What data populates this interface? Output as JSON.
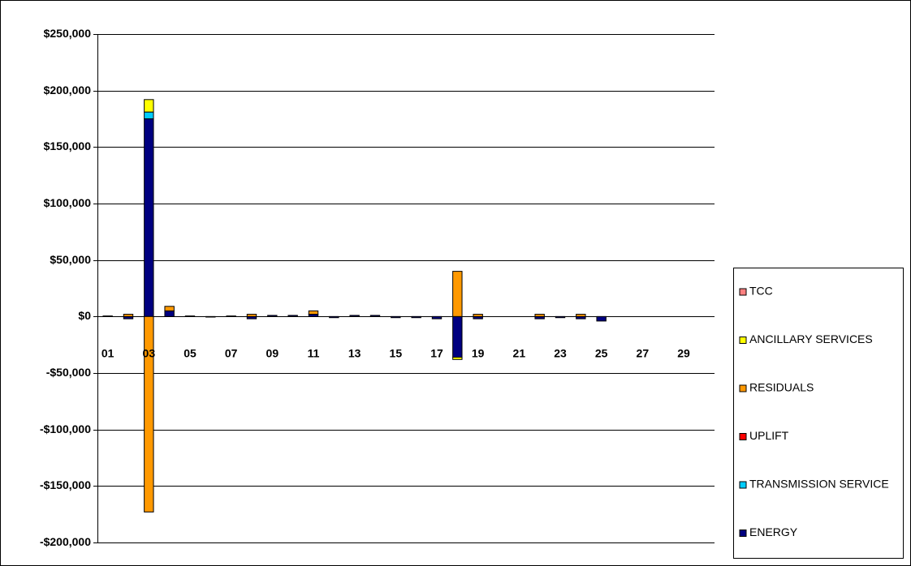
{
  "chart_data": {
    "type": "stacked-bar",
    "categories": [
      "01",
      null,
      "03",
      null,
      "05",
      null,
      "07",
      null,
      "09",
      null,
      "11",
      null,
      "13",
      null,
      "15",
      null,
      "17",
      null,
      "19",
      null,
      "21",
      null,
      "23",
      null,
      "25",
      null,
      "27",
      null,
      "29",
      null
    ],
    "series": [
      {
        "name": "ENERGY",
        "color": "#000080",
        "values": [
          500,
          -2000,
          175000,
          5000,
          500,
          -500,
          500,
          -2000,
          1000,
          1000,
          2000,
          -1000,
          1000,
          1000,
          -1000,
          -1000,
          -2000,
          -36000,
          -2000,
          0,
          0,
          -2000,
          -1000,
          -2000,
          -4000,
          0,
          0,
          0,
          0,
          0
        ]
      },
      {
        "name": "TRANSMISSION SERVICE",
        "color": "#00ccff",
        "values": [
          0,
          0,
          6000,
          0,
          0,
          0,
          0,
          0,
          0,
          0,
          0,
          0,
          0,
          0,
          0,
          0,
          0,
          0,
          0,
          0,
          0,
          0,
          0,
          0,
          0,
          0,
          0,
          0,
          0,
          0
        ]
      },
      {
        "name": "UPLIFT",
        "color": "#ff0000",
        "values": [
          0,
          0,
          0,
          0,
          0,
          0,
          0,
          0,
          0,
          0,
          0,
          0,
          0,
          0,
          0,
          0,
          0,
          0,
          0,
          0,
          0,
          0,
          0,
          0,
          0,
          0,
          0,
          0,
          0,
          0
        ]
      },
      {
        "name": "RESIDUALS",
        "color": "#ff9900",
        "values": [
          0,
          2000,
          -173000,
          4000,
          0,
          0,
          0,
          2000,
          0,
          0,
          3000,
          0,
          0,
          0,
          0,
          0,
          0,
          40000,
          2000,
          0,
          0,
          2000,
          0,
          2000,
          0,
          0,
          0,
          0,
          0,
          0
        ]
      },
      {
        "name": "ANCILLARY SERVICES",
        "color": "#ffff00",
        "values": [
          0,
          0,
          11000,
          0,
          0,
          0,
          0,
          0,
          0,
          0,
          0,
          0,
          0,
          0,
          0,
          0,
          0,
          -2000,
          0,
          0,
          0,
          0,
          0,
          0,
          0,
          0,
          0,
          0,
          0,
          0
        ]
      },
      {
        "name": "TCC",
        "color": "#ff8080",
        "values": [
          0,
          0,
          0,
          0,
          0,
          0,
          0,
          0,
          0,
          0,
          0,
          0,
          0,
          0,
          0,
          0,
          0,
          0,
          0,
          0,
          0,
          0,
          0,
          0,
          0,
          0,
          0,
          0,
          0,
          0
        ]
      }
    ],
    "ylim": [
      -200000,
      250000
    ],
    "yticks": [
      {
        "value": -200000,
        "label": "-$200,000"
      },
      {
        "value": -150000,
        "label": "-$150,000"
      },
      {
        "value": -100000,
        "label": "-$100,000"
      },
      {
        "value": -50000,
        "label": "-$50,000"
      },
      {
        "value": 0,
        "label": "$0"
      },
      {
        "value": 50000,
        "label": "$50,000"
      },
      {
        "value": 100000,
        "label": "$100,000"
      },
      {
        "value": 150000,
        "label": "$150,000"
      },
      {
        "value": 200000,
        "label": "$200,000"
      },
      {
        "value": 250000,
        "label": "$250,000"
      }
    ],
    "grid": true,
    "legend": "right"
  }
}
